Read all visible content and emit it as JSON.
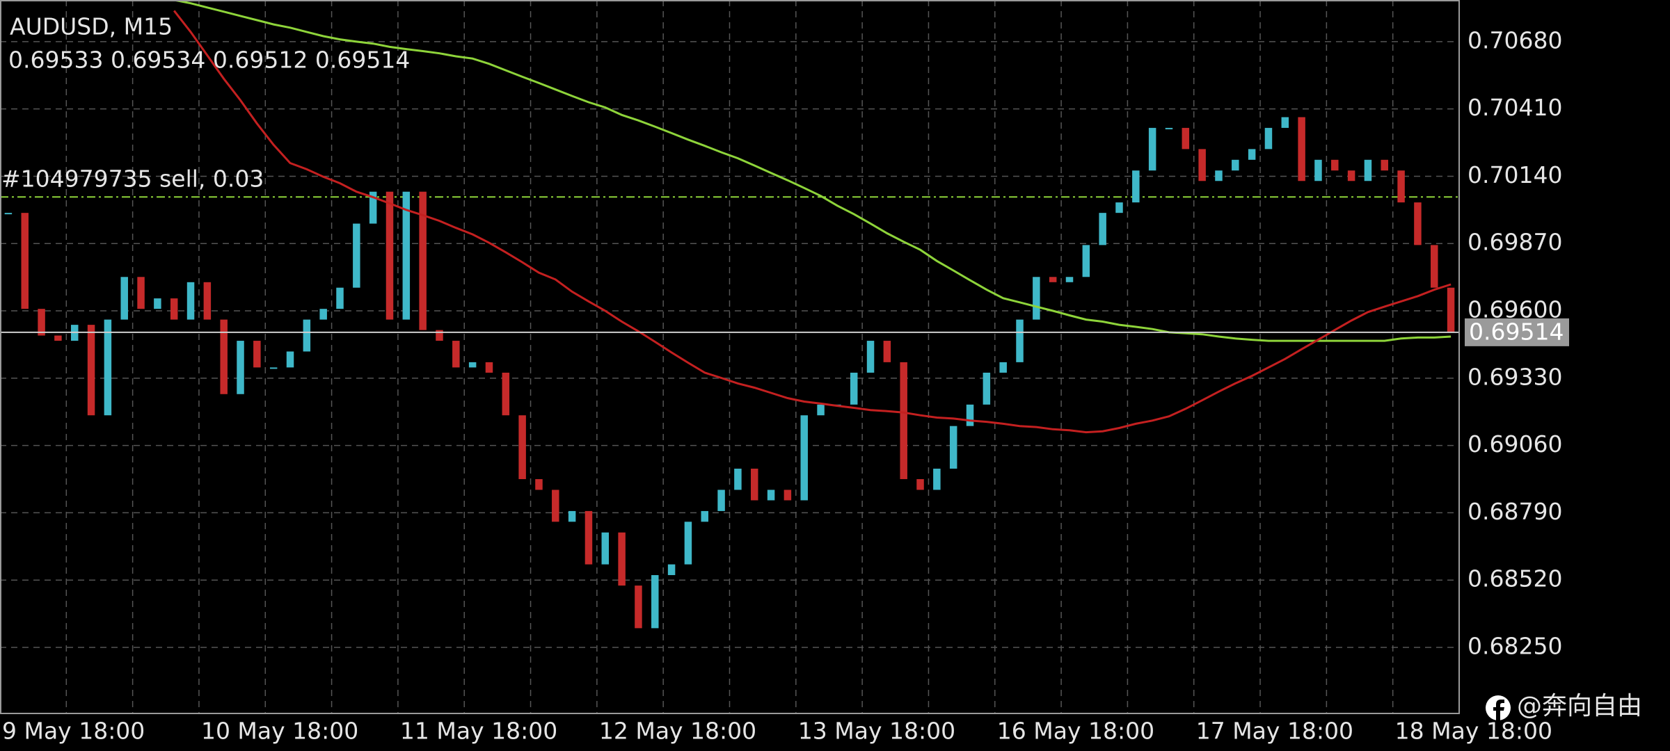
{
  "chart_data": {
    "type": "candlestick",
    "title": "AUDUSD, M15",
    "ohlc_text": "0.69533 0.69534 0.69512 0.69514",
    "categories": [
      "9 May 18:00",
      null,
      null,
      null,
      null,
      null,
      null,
      null,
      null,
      null,
      null,
      null,
      "10 May 18:00",
      null,
      null,
      null,
      null,
      null,
      null,
      null,
      null,
      null,
      null,
      null,
      "11 May 18:00",
      null,
      null,
      null,
      null,
      null,
      null,
      null,
      null,
      null,
      null,
      null,
      "12 May 18:00",
      null,
      null,
      null,
      null,
      null,
      null,
      null,
      null,
      null,
      null,
      null,
      "13 May 18:00",
      null,
      null,
      null,
      null,
      null,
      null,
      null,
      null,
      null,
      null,
      null,
      "16 May 18:00",
      null,
      null,
      null,
      null,
      null,
      null,
      null,
      null,
      null,
      null,
      null,
      "17 May 18:00",
      null,
      null,
      null,
      null,
      null,
      null,
      null,
      null,
      null,
      null,
      null,
      "18 May 18:00",
      null,
      null,
      null
    ],
    "close": [
      0.69993,
      0.69608,
      0.69501,
      0.6948,
      0.69544,
      0.69181,
      0.69565,
      0.69736,
      0.69608,
      0.6965,
      0.69565,
      0.69715,
      0.69565,
      0.69266,
      0.6948,
      0.69373,
      0.69373,
      0.69437,
      0.69565,
      0.69608,
      0.69693,
      0.6995,
      0.70078,
      0.69565,
      0.70078,
      0.69523,
      0.6948,
      0.69373,
      0.69394,
      0.69352,
      0.69181,
      0.68925,
      0.68882,
      0.68754,
      0.68797,
      0.68583,
      0.68711,
      0.68498,
      0.68327,
      0.6854,
      0.68583,
      0.68754,
      0.68797,
      0.68882,
      0.68967,
      0.6884,
      0.68882,
      0.6884,
      0.69181,
      0.69224,
      0.69224,
      0.69352,
      0.6948,
      0.69394,
      0.68925,
      0.68882,
      0.68967,
      0.69138,
      0.69224,
      0.69352,
      0.69394,
      0.69565,
      0.69736,
      0.69715,
      0.69736,
      0.69864,
      0.69993,
      0.70035,
      0.70163,
      0.70334,
      0.70334,
      0.70249,
      0.70121,
      0.70163,
      0.70206,
      0.70249,
      0.70334,
      0.70377,
      0.70121,
      0.70206,
      0.70163,
      0.70121,
      0.70206,
      0.70163,
      0.70035,
      0.69864,
      0.69693,
      0.69514
    ],
    "up_color": "#3fb8c9",
    "down_color": "#c62a2a",
    "moving_averages": [
      {
        "color": "#8ed43a",
        "values": [
          null,
          null,
          null,
          null,
          null,
          null,
          null,
          null,
          null,
          null,
          0.70847,
          0.70834,
          0.70817,
          0.708,
          0.70783,
          0.70766,
          0.70749,
          0.70736,
          0.70719,
          0.70702,
          0.70689,
          0.7068,
          0.70672,
          0.70659,
          0.7065,
          0.70642,
          0.70633,
          0.70621,
          0.70612,
          0.70591,
          0.70565,
          0.70539,
          0.70514,
          0.70488,
          0.70462,
          0.70437,
          0.70416,
          0.70386,
          0.70364,
          0.70339,
          0.70313,
          0.70287,
          0.70262,
          0.70236,
          0.70212,
          0.70183,
          0.70153,
          0.70124,
          0.70093,
          0.70061,
          0.70022,
          0.69988,
          0.6995,
          0.69911,
          0.69877,
          0.69845,
          0.698,
          0.69762,
          0.69723,
          0.69685,
          0.69651,
          0.69634,
          0.69617,
          0.696,
          0.69582,
          0.69565,
          0.69557,
          0.69544,
          0.69536,
          0.69527,
          0.69514,
          0.6951,
          0.69506,
          0.69497,
          0.69489,
          0.69484,
          0.6948,
          0.6948,
          0.6948,
          0.6948,
          0.6948,
          0.6948,
          0.6948,
          0.6948,
          0.69489,
          0.69493,
          0.69493,
          0.69497
        ]
      },
      {
        "color": "#c42020",
        "values": [
          null,
          null,
          null,
          null,
          null,
          null,
          null,
          null,
          null,
          null,
          0.70804,
          0.70719,
          0.70625,
          0.70531,
          0.70445,
          0.70351,
          0.70266,
          0.70193,
          0.70168,
          0.70138,
          0.70112,
          0.70078,
          0.70056,
          0.70031,
          0.70005,
          0.69984,
          0.69961,
          0.69933,
          0.69907,
          0.69873,
          0.69835,
          0.69795,
          0.69753,
          0.69726,
          0.69677,
          0.69638,
          0.696,
          0.69557,
          0.69518,
          0.69476,
          0.69433,
          0.69392,
          0.69352,
          0.69331,
          0.69309,
          0.69292,
          0.69271,
          0.6925,
          0.69236,
          0.69228,
          0.69219,
          0.69211,
          0.69202,
          0.69198,
          0.69192,
          0.69181,
          0.69172,
          0.69168,
          0.6916,
          0.69155,
          0.69147,
          0.69138,
          0.69134,
          0.69125,
          0.69121,
          0.69113,
          0.69117,
          0.6913,
          0.69147,
          0.6916,
          0.69177,
          0.69207,
          0.69241,
          0.69276,
          0.69309,
          0.69339,
          0.69373,
          0.69407,
          0.69446,
          0.69484,
          0.69523,
          0.69561,
          0.69595,
          0.69617,
          0.69638,
          0.69659,
          0.69685,
          0.69706
        ]
      }
    ],
    "order_line": {
      "label": "#104979735 sell, 0.03",
      "value": 0.70057,
      "color": "#8ed43a"
    },
    "price_line": {
      "label": "0.69514",
      "value": 0.69514
    },
    "ylim": [
      0.67985,
      0.70847
    ],
    "yticks": [
      {
        "value": 0.7068,
        "label": "0.70680"
      },
      {
        "value": 0.7041,
        "label": "0.70410"
      },
      {
        "value": 0.7014,
        "label": "0.70140"
      },
      {
        "value": 0.6987,
        "label": "0.69870"
      },
      {
        "value": 0.696,
        "label": "0.69600"
      },
      {
        "value": 0.6933,
        "label": "0.69330"
      },
      {
        "value": 0.6906,
        "label": "0.69060"
      },
      {
        "value": 0.6879,
        "label": "0.68790"
      },
      {
        "value": 0.6852,
        "label": "0.68520"
      },
      {
        "value": 0.6825,
        "label": "0.68250"
      }
    ],
    "grid": true,
    "watermark": "@奔向自由"
  }
}
